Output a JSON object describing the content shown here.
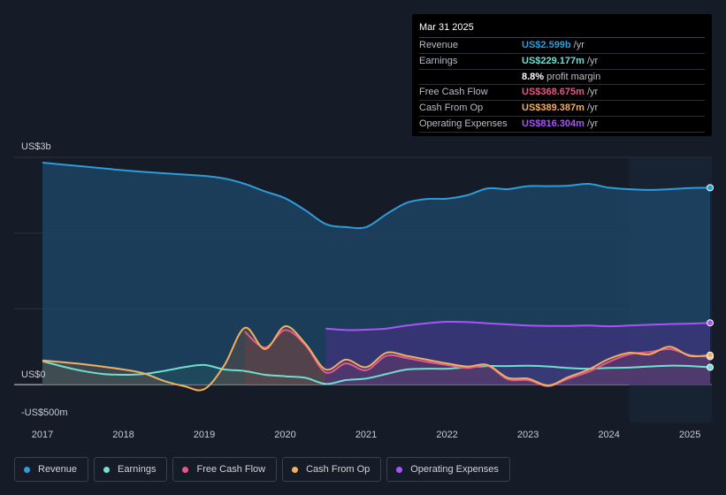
{
  "tooltip": {
    "date": "Mar 31 2025",
    "rows": [
      {
        "label": "Revenue",
        "value": "US$2.599b",
        "unit": "/yr",
        "color": "#2d9cdb"
      },
      {
        "label": "Earnings",
        "value": "US$229.177m",
        "unit": "/yr",
        "color": "#6fe0d0"
      },
      {
        "label": "",
        "value": "8.8%",
        "unit": "profit margin",
        "color": "#ffffff"
      },
      {
        "label": "Free Cash Flow",
        "value": "US$368.675m",
        "unit": "/yr",
        "color": "#e05a8a"
      },
      {
        "label": "Cash From Op",
        "value": "US$389.387m",
        "unit": "/yr",
        "color": "#f0b060"
      },
      {
        "label": "Operating Expenses",
        "value": "US$816.304m",
        "unit": "/yr",
        "color": "#a855f7"
      }
    ]
  },
  "legend": [
    {
      "label": "Revenue",
      "color": "#2d9cdb"
    },
    {
      "label": "Earnings",
      "color": "#6fe0d0"
    },
    {
      "label": "Free Cash Flow",
      "color": "#e05a8a"
    },
    {
      "label": "Cash From Op",
      "color": "#f0b060"
    },
    {
      "label": "Operating Expenses",
      "color": "#a855f7"
    }
  ],
  "chart_data": {
    "type": "area",
    "title": "",
    "xlabel": "",
    "ylabel": "",
    "xlim": [
      2017.0,
      2025.25
    ],
    "ylim": [
      -500,
      3000
    ],
    "y_tick_labels": [
      {
        "value": 3000,
        "label": "US$3b"
      },
      {
        "value": 0,
        "label": "US$0"
      },
      {
        "value": -500,
        "label": "-US$500m"
      }
    ],
    "x_ticks": [
      2017,
      2018,
      2019,
      2020,
      2021,
      2022,
      2023,
      2024,
      2025
    ],
    "x_tick_labels": [
      "2017",
      "2018",
      "2019",
      "2020",
      "2021",
      "2022",
      "2023",
      "2024",
      "2025"
    ],
    "forecast_start": 2024.25,
    "series": [
      {
        "name": "Revenue",
        "color": "#2d9cdb",
        "points": [
          [
            2017.0,
            2930
          ],
          [
            2017.5,
            2880
          ],
          [
            2018.0,
            2830
          ],
          [
            2018.5,
            2790
          ],
          [
            2019.0,
            2755
          ],
          [
            2019.25,
            2720
          ],
          [
            2019.5,
            2650
          ],
          [
            2019.75,
            2550
          ],
          [
            2020.0,
            2460
          ],
          [
            2020.25,
            2300
          ],
          [
            2020.5,
            2120
          ],
          [
            2020.75,
            2080
          ],
          [
            2021.0,
            2080
          ],
          [
            2021.25,
            2250
          ],
          [
            2021.5,
            2400
          ],
          [
            2021.75,
            2450
          ],
          [
            2022.0,
            2455
          ],
          [
            2022.25,
            2500
          ],
          [
            2022.5,
            2590
          ],
          [
            2022.75,
            2580
          ],
          [
            2023.0,
            2620
          ],
          [
            2023.25,
            2620
          ],
          [
            2023.5,
            2625
          ],
          [
            2023.75,
            2650
          ],
          [
            2024.0,
            2600
          ],
          [
            2024.25,
            2580
          ],
          [
            2024.5,
            2570
          ],
          [
            2024.75,
            2580
          ],
          [
            2025.0,
            2595
          ],
          [
            2025.25,
            2599
          ]
        ]
      },
      {
        "name": "Earnings",
        "color": "#6fe0d0",
        "points": [
          [
            2017.0,
            310
          ],
          [
            2017.25,
            240
          ],
          [
            2017.5,
            180
          ],
          [
            2017.75,
            140
          ],
          [
            2018.0,
            130
          ],
          [
            2018.25,
            140
          ],
          [
            2018.5,
            180
          ],
          [
            2018.75,
            230
          ],
          [
            2019.0,
            260
          ],
          [
            2019.25,
            200
          ],
          [
            2019.5,
            180
          ],
          [
            2019.75,
            130
          ],
          [
            2020.0,
            110
          ],
          [
            2020.25,
            90
          ],
          [
            2020.5,
            10
          ],
          [
            2020.75,
            60
          ],
          [
            2021.0,
            80
          ],
          [
            2021.25,
            140
          ],
          [
            2021.5,
            200
          ],
          [
            2021.75,
            210
          ],
          [
            2022.0,
            210
          ],
          [
            2022.25,
            230
          ],
          [
            2022.5,
            245
          ],
          [
            2022.75,
            245
          ],
          [
            2023.0,
            250
          ],
          [
            2023.25,
            240
          ],
          [
            2023.5,
            220
          ],
          [
            2023.75,
            210
          ],
          [
            2024.0,
            220
          ],
          [
            2024.25,
            225
          ],
          [
            2024.5,
            240
          ],
          [
            2024.75,
            250
          ],
          [
            2025.0,
            245
          ],
          [
            2025.25,
            229
          ]
        ]
      },
      {
        "name": "Free Cash Flow",
        "color": "#e05a8a",
        "points": [
          [
            2019.5,
            700
          ],
          [
            2019.75,
            490
          ],
          [
            2020.0,
            720
          ],
          [
            2020.25,
            520
          ],
          [
            2020.5,
            160
          ],
          [
            2020.75,
            280
          ],
          [
            2021.0,
            190
          ],
          [
            2021.25,
            380
          ],
          [
            2021.5,
            350
          ],
          [
            2021.75,
            300
          ],
          [
            2022.0,
            260
          ],
          [
            2022.25,
            220
          ],
          [
            2022.5,
            250
          ],
          [
            2022.75,
            70
          ],
          [
            2023.0,
            60
          ],
          [
            2023.25,
            -20
          ],
          [
            2023.5,
            80
          ],
          [
            2023.75,
            170
          ],
          [
            2024.0,
            300
          ],
          [
            2024.25,
            400
          ],
          [
            2024.5,
            430
          ],
          [
            2024.75,
            470
          ],
          [
            2025.0,
            390
          ],
          [
            2025.25,
            369
          ]
        ]
      },
      {
        "name": "Cash From Op",
        "color": "#f0b060",
        "points": [
          [
            2017.0,
            320
          ],
          [
            2017.5,
            270
          ],
          [
            2018.0,
            200
          ],
          [
            2018.25,
            150
          ],
          [
            2018.5,
            50
          ],
          [
            2018.75,
            -20
          ],
          [
            2019.0,
            -60
          ],
          [
            2019.25,
            260
          ],
          [
            2019.5,
            750
          ],
          [
            2019.75,
            470
          ],
          [
            2020.0,
            770
          ],
          [
            2020.25,
            540
          ],
          [
            2020.5,
            200
          ],
          [
            2020.75,
            330
          ],
          [
            2021.0,
            230
          ],
          [
            2021.25,
            420
          ],
          [
            2021.5,
            380
          ],
          [
            2021.75,
            330
          ],
          [
            2022.0,
            280
          ],
          [
            2022.25,
            240
          ],
          [
            2022.5,
            260
          ],
          [
            2022.75,
            90
          ],
          [
            2023.0,
            80
          ],
          [
            2023.25,
            -10
          ],
          [
            2023.5,
            100
          ],
          [
            2023.75,
            200
          ],
          [
            2024.0,
            340
          ],
          [
            2024.25,
            420
          ],
          [
            2024.5,
            400
          ],
          [
            2024.75,
            500
          ],
          [
            2025.0,
            380
          ],
          [
            2025.25,
            389
          ]
        ]
      },
      {
        "name": "Operating Expenses",
        "color": "#a855f7",
        "points": [
          [
            2020.5,
            740
          ],
          [
            2020.75,
            720
          ],
          [
            2021.0,
            725
          ],
          [
            2021.25,
            740
          ],
          [
            2021.5,
            780
          ],
          [
            2021.75,
            810
          ],
          [
            2022.0,
            830
          ],
          [
            2022.25,
            825
          ],
          [
            2022.5,
            810
          ],
          [
            2022.75,
            795
          ],
          [
            2023.0,
            780
          ],
          [
            2023.25,
            775
          ],
          [
            2023.5,
            775
          ],
          [
            2023.75,
            780
          ],
          [
            2024.0,
            770
          ],
          [
            2024.25,
            780
          ],
          [
            2024.5,
            790
          ],
          [
            2024.75,
            800
          ],
          [
            2025.0,
            805
          ],
          [
            2025.25,
            816
          ]
        ]
      }
    ]
  }
}
